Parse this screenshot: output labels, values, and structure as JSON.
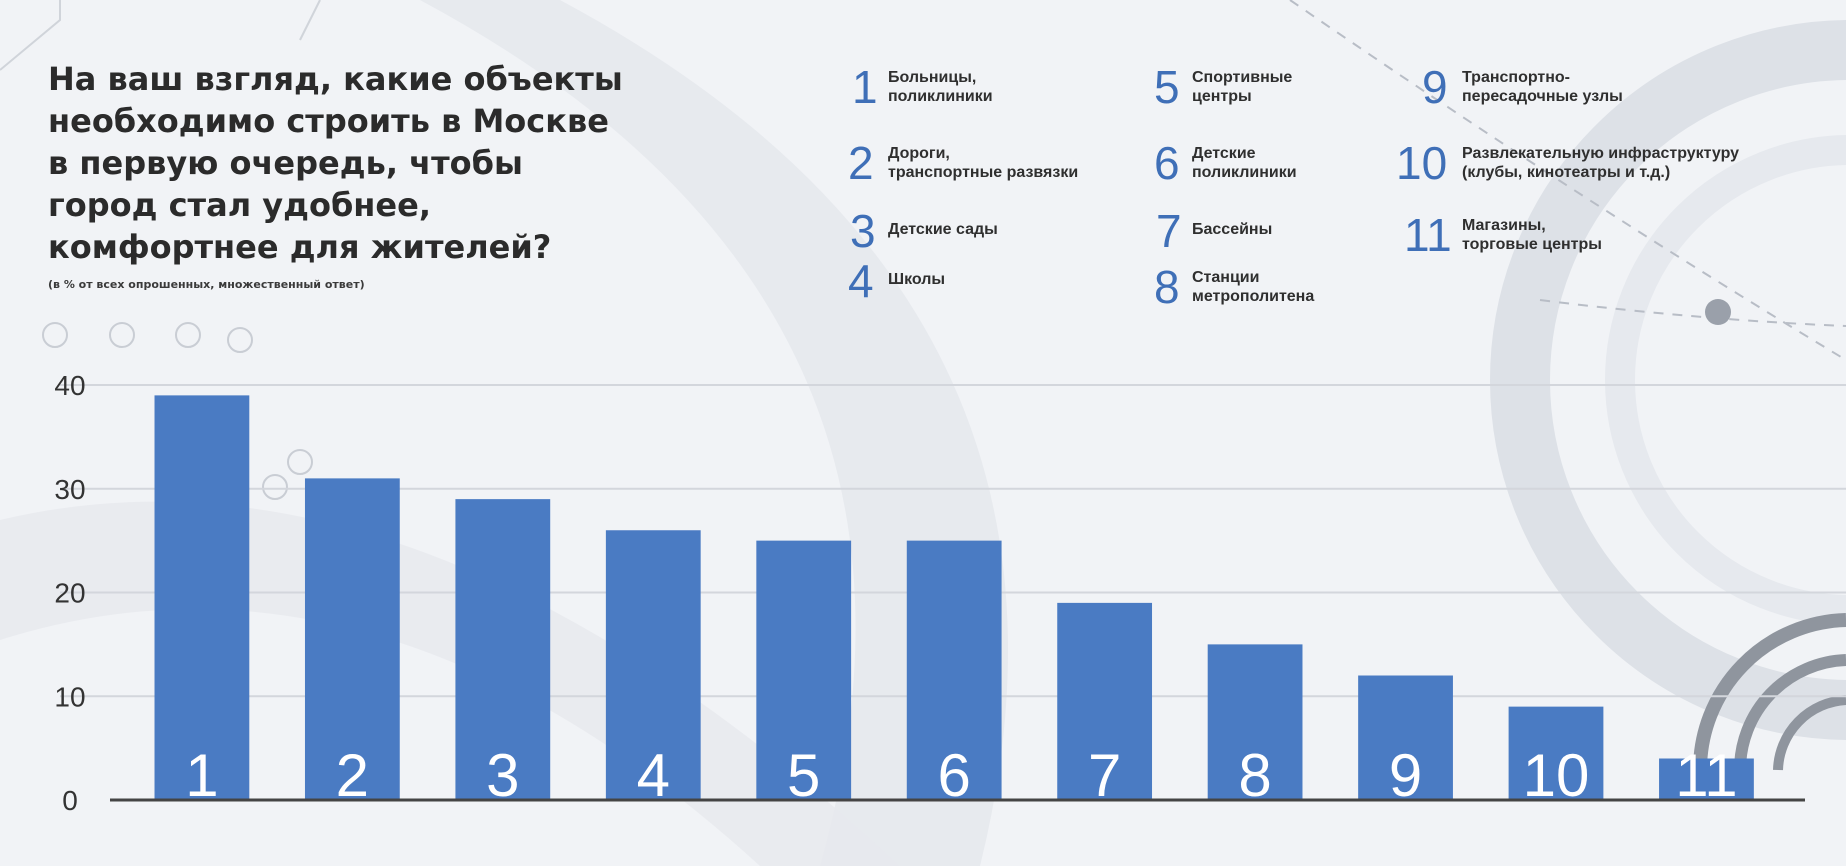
{
  "title_lines": [
    "На ваш взгляд, какие объекты",
    "необходимо строить в Москве",
    "в первую очередь, чтобы",
    "город стал удобнее,",
    "комфортнее для жителей?"
  ],
  "subtitle": "(в % от всех опрошенных, множественный ответ)",
  "legend": [
    {
      "num": "1",
      "lines": [
        "Больницы,",
        "поликлиники"
      ]
    },
    {
      "num": "2",
      "lines": [
        "Дороги,",
        "транспортные развязки"
      ]
    },
    {
      "num": "3",
      "lines": [
        "Детские сады"
      ]
    },
    {
      "num": "4",
      "lines": [
        "Школы"
      ]
    },
    {
      "num": "5",
      "lines": [
        "Спортивные",
        "центры"
      ]
    },
    {
      "num": "6",
      "lines": [
        "Детские",
        "поликлиники"
      ]
    },
    {
      "num": "7",
      "lines": [
        "Бассейны"
      ]
    },
    {
      "num": "8",
      "lines": [
        "Станции",
        "метрополитена"
      ]
    },
    {
      "num": "9",
      "lines": [
        "Транспортно-",
        "пересадочные узлы"
      ]
    },
    {
      "num": "10",
      "lines": [
        "Развлекательную инфраструктуру",
        "(клубы, кинотеатры и т.д.)"
      ]
    },
    {
      "num": "11",
      "lines": [
        "Магазины,",
        "торговые центры"
      ]
    }
  ],
  "chart_data": {
    "type": "bar",
    "categories": [
      "1",
      "2",
      "3",
      "4",
      "5",
      "6",
      "7",
      "8",
      "9",
      "10",
      "11"
    ],
    "values": [
      39,
      31,
      29,
      26,
      25,
      25,
      19,
      15,
      12,
      9,
      4
    ],
    "ylim": [
      0,
      40
    ],
    "yticks": [
      "0",
      "10",
      "20",
      "30",
      "40"
    ],
    "grid": true,
    "bar_color": "#4a7bc3",
    "category_label_color": "#ffffff"
  }
}
